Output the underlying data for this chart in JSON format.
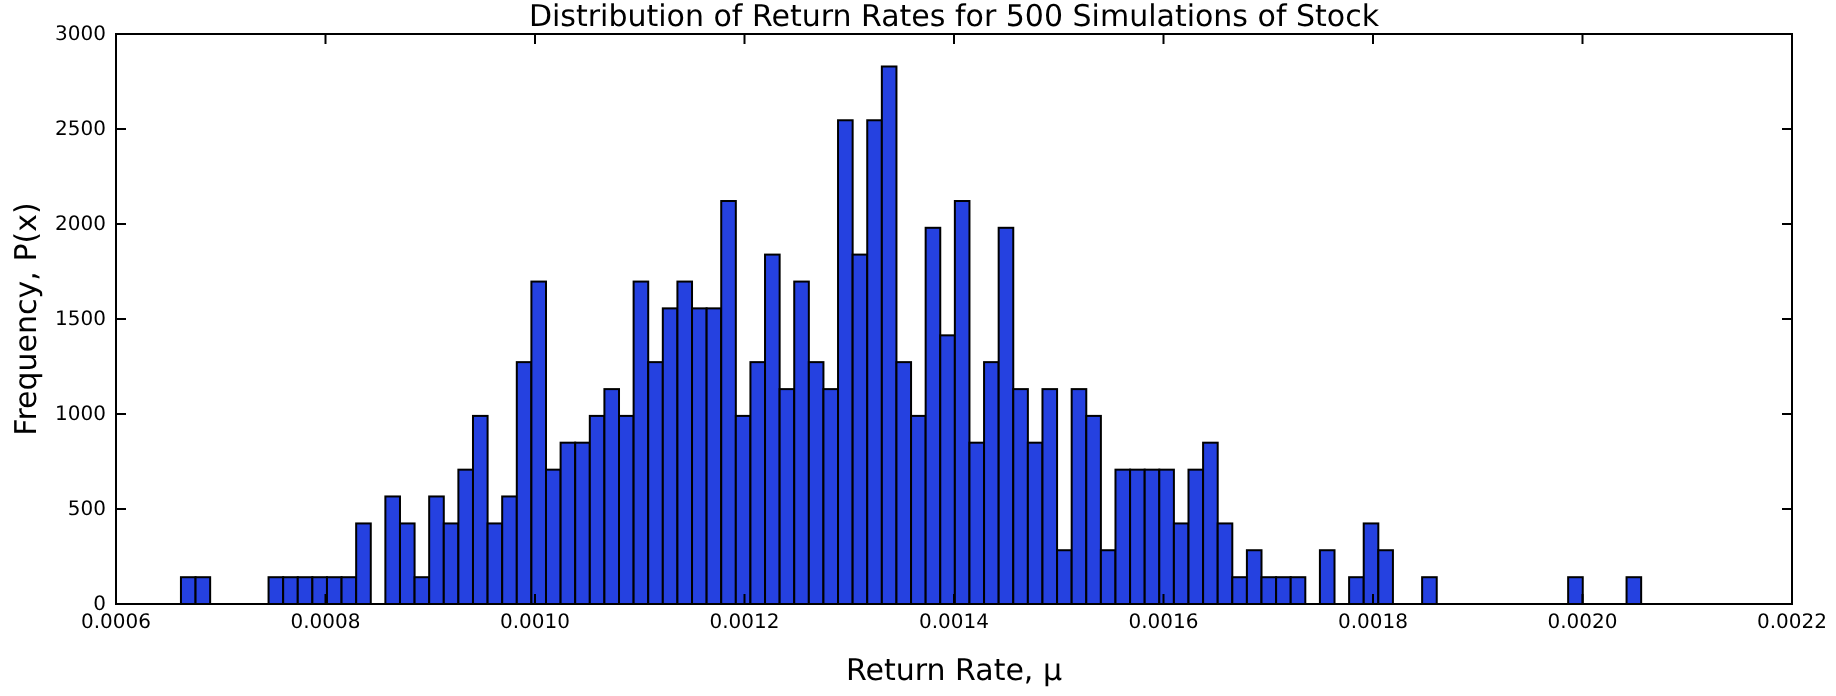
{
  "chart_data": {
    "type": "histogram",
    "title": "Distribution of Return Rates for 500 Simulations of Stock",
    "xlabel": "Return Rate, μ",
    "ylabel": "Frequency, P(x)",
    "color": "#2541e0",
    "bins": [
      0.000662,
      0.00067594,
      0.00068988,
      0.00070382,
      0.00071776,
      0.0007317,
      0.00074564,
      0.00075958,
      0.00077352,
      0.00078746,
      0.0008014,
      0.00081534,
      0.00082928,
      0.00084322,
      0.00085716,
      0.0008711,
      0.00088504,
      0.00089898,
      0.00091292,
      0.00092686,
      0.0009408,
      0.00095474,
      0.00096868,
      0.00098262,
      0.00099656,
      0.0010105,
      0.00102444,
      0.00103838,
      0.00105232,
      0.00106626,
      0.0010802,
      0.00109414,
      0.00110808,
      0.00112202,
      0.00113596,
      0.0011499,
      0.00116384,
      0.00117778,
      0.00119172,
      0.00120566,
      0.0012196,
      0.00123354,
      0.00124748,
      0.00126142,
      0.00127536,
      0.0012893,
      0.00130324,
      0.00131718,
      0.00133112,
      0.00134506,
      0.001359,
      0.00137294,
      0.00138688,
      0.00140082,
      0.00141476,
      0.0014287,
      0.00144264,
      0.00145658,
      0.00147052,
      0.00148446,
      0.0014984,
      0.00151234,
      0.00152628,
      0.00154022,
      0.00155416,
      0.0015681,
      0.00158204,
      0.00159598,
      0.00160992,
      0.00162386,
      0.0016378,
      0.00165174,
      0.00166568,
      0.00167962,
      0.00169356,
      0.0017075,
      0.00172144,
      0.00173538,
      0.00174932,
      0.00176326,
      0.0017772,
      0.00179114,
      0.00180508,
      0.00181902,
      0.00183296,
      0.0018469,
      0.00186084,
      0.00187478,
      0.00188872,
      0.00190266,
      0.0019166,
      0.00193054,
      0.00194448,
      0.00195842,
      0.00197236,
      0.0019863,
      0.00200024,
      0.00201418,
      0.00202812,
      0.00204206,
      0.002056
    ],
    "values": [
      141,
      141,
      0,
      0,
      0,
      0,
      141,
      141,
      141,
      141,
      141,
      141,
      424,
      0,
      566,
      424,
      141,
      566,
      424,
      707,
      990,
      424,
      566,
      1273,
      1697,
      707,
      849,
      849,
      990,
      1131,
      990,
      1697,
      1273,
      1556,
      1697,
      1556,
      1556,
      2121,
      990,
      1273,
      1839,
      1131,
      1697,
      1273,
      1131,
      2546,
      1839,
      2546,
      2829,
      1273,
      990,
      1980,
      1414,
      2121,
      849,
      1273,
      1980,
      1131,
      849,
      1131,
      283,
      1131,
      990,
      283,
      707,
      707,
      707,
      707,
      424,
      707,
      849,
      424,
      141,
      283,
      141,
      141,
      141,
      0,
      283,
      0,
      141,
      424,
      283,
      0,
      0,
      141,
      0,
      0,
      0,
      0,
      0,
      0,
      0,
      0,
      0,
      141,
      0,
      0,
      0,
      141
    ],
    "xlim": [
      0.0006,
      0.0022
    ],
    "xticks": [
      {
        "value": 0.0006,
        "label": "0.0006"
      },
      {
        "value": 0.0008,
        "label": "0.0008"
      },
      {
        "value": 0.001,
        "label": "0.0010"
      },
      {
        "value": 0.0012,
        "label": "0.0012"
      },
      {
        "value": 0.0014,
        "label": "0.0014"
      },
      {
        "value": 0.0016,
        "label": "0.0016"
      },
      {
        "value": 0.0018,
        "label": "0.0018"
      },
      {
        "value": 0.002,
        "label": "0.0020"
      },
      {
        "value": 0.0022,
        "label": "0.0022"
      }
    ],
    "ylim": [
      0,
      3000
    ],
    "yticks": [
      0,
      500,
      1000,
      1500,
      2000,
      2500,
      3000
    ]
  }
}
